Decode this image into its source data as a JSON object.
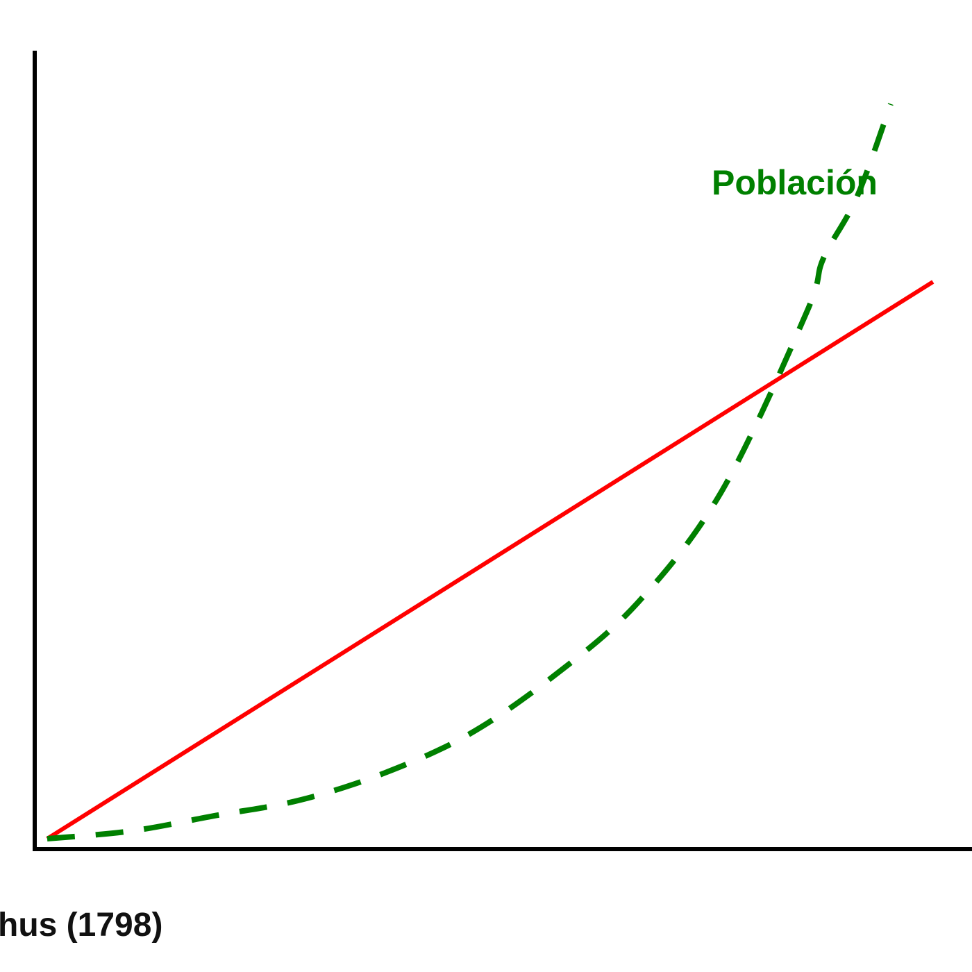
{
  "chart_data": {
    "type": "line",
    "x_range": [
      0,
      10
    ],
    "y_range": [
      0,
      10
    ],
    "grid": false,
    "legend": "none",
    "series": [
      {
        "name": "",
        "color": "#ff0000",
        "line_style": "solid",
        "x": [
          0,
          10.5
        ],
        "y": [
          0,
          7.2
        ]
      },
      {
        "name": "Población",
        "color": "#008000",
        "line_style": "dashed",
        "x": [
          0,
          1,
          2,
          3,
          4,
          5,
          6,
          7,
          8,
          9,
          9.2,
          9.6,
          10
        ],
        "y": [
          0,
          0.1,
          0.3,
          0.5,
          0.85,
          1.35,
          2.1,
          3.05,
          4.5,
          6.8,
          7.5,
          8.3,
          9.5
        ]
      }
    ],
    "caption": "hus (1798)"
  }
}
